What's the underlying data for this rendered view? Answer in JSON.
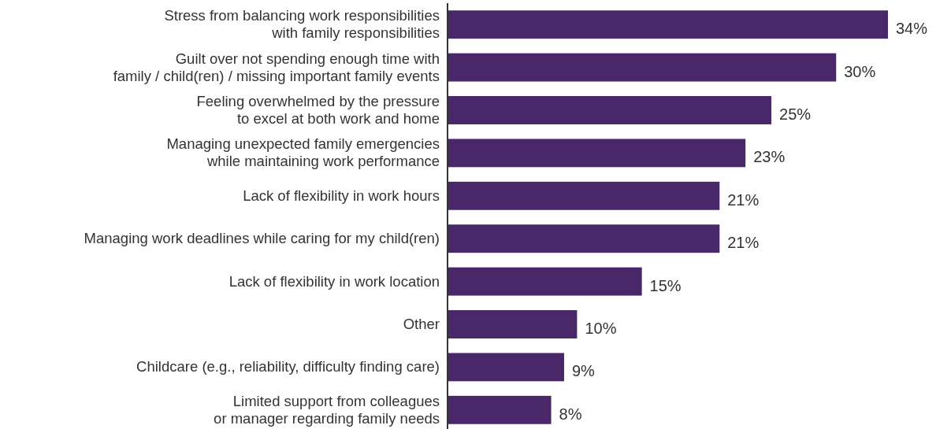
{
  "chart_data": {
    "type": "bar",
    "orientation": "horizontal",
    "categories": [
      "Stress from balancing work responsibilities\nwith family responsibilities",
      "Guilt over not spending enough time with\nfamily / child(ren) / missing important family events",
      "Feeling overwhelmed by the pressure\nto excel at both work and home",
      "Managing unexpected family emergencies\nwhile maintaining work performance",
      "Lack of flexibility in work hours",
      "Managing work deadlines while caring for my child(ren)",
      "Lack of flexibility in work location",
      "Other",
      "Childcare (e.g., reliability, difficulty finding care)",
      "Limited support from colleagues\nor manager regarding family needs"
    ],
    "values": [
      34,
      30,
      25,
      23,
      21,
      21,
      15,
      10,
      9,
      8
    ],
    "value_labels": [
      "34%",
      "30%",
      "25%",
      "23%",
      "21%",
      "21%",
      "15%",
      "10%",
      "9%",
      "8%"
    ],
    "color": "#4a2769"
  }
}
